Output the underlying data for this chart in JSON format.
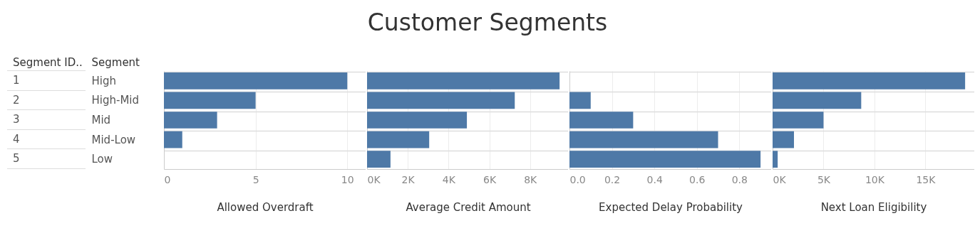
{
  "chart_data": [
    {
      "type": "bar",
      "orientation": "horizontal",
      "y2label": "Segment ID..",
      "y2_categories": [
        "1",
        "2",
        "3",
        "4",
        "5"
      ],
      "ylabel": "Segment",
      "xlabel": "Allowed Overdraft",
      "categories": [
        "High",
        "High-Mid",
        "Mid",
        "Mid-Low",
        "Low"
      ],
      "values": [
        10,
        5,
        2.9,
        1,
        0
      ],
      "color": "#4e79a7",
      "xlim": [
        0,
        11
      ],
      "xticks": [
        0,
        5,
        10
      ],
      "grid": true
    },
    {
      "type": "bar",
      "orientation": "horizontal",
      "title": "Customer Segments",
      "xlabel": "Average Credit Amount",
      "categories": [
        null,
        null,
        null,
        null,
        null
      ],
      "values": [
        9450,
        7250,
        4900,
        3050,
        1150
      ],
      "color": "#4e79a7",
      "xlim": [
        0,
        9900
      ],
      "xticks": [
        {
          "value": 0,
          "label": "0K"
        },
        {
          "value": 2000,
          "label": "2K"
        },
        {
          "value": 4000,
          "label": "4K"
        },
        {
          "value": 6000,
          "label": "6K"
        },
        {
          "value": 8000,
          "label": "8K"
        }
      ],
      "grid": true,
      "tick_labels": "x"
    },
    {
      "type": "bar",
      "orientation": "horizontal",
      "xlabel": "Expected Delay Probability",
      "categories": [
        null,
        null,
        null,
        null,
        null
      ],
      "values": [
        0,
        0.1,
        0.3,
        0.7,
        0.9
      ],
      "color": "#4e79a7",
      "xlim": [
        0,
        0.95
      ],
      "xticks": [
        {
          "value": 0,
          "label": "0.0"
        },
        0.2,
        0.4,
        0.6,
        0.8
      ],
      "grid": true,
      "tick_labels": "x"
    },
    {
      "type": "bar",
      "orientation": "horizontal",
      "xlabel": "Next Loan Eligibility",
      "categories": [
        null,
        null,
        null,
        null,
        null
      ],
      "values": [
        18900,
        8700,
        5000,
        2100,
        500
      ],
      "color": "#4e79a7",
      "xlim": [
        0,
        19800
      ],
      "xticks": [
        {
          "value": 0,
          "label": "0K"
        },
        {
          "value": 5000,
          "label": "5K"
        },
        {
          "value": 10000,
          "label": "10K"
        },
        {
          "value": 15000,
          "label": "15K"
        }
      ],
      "grid": true,
      "tick_labels": "x"
    }
  ]
}
